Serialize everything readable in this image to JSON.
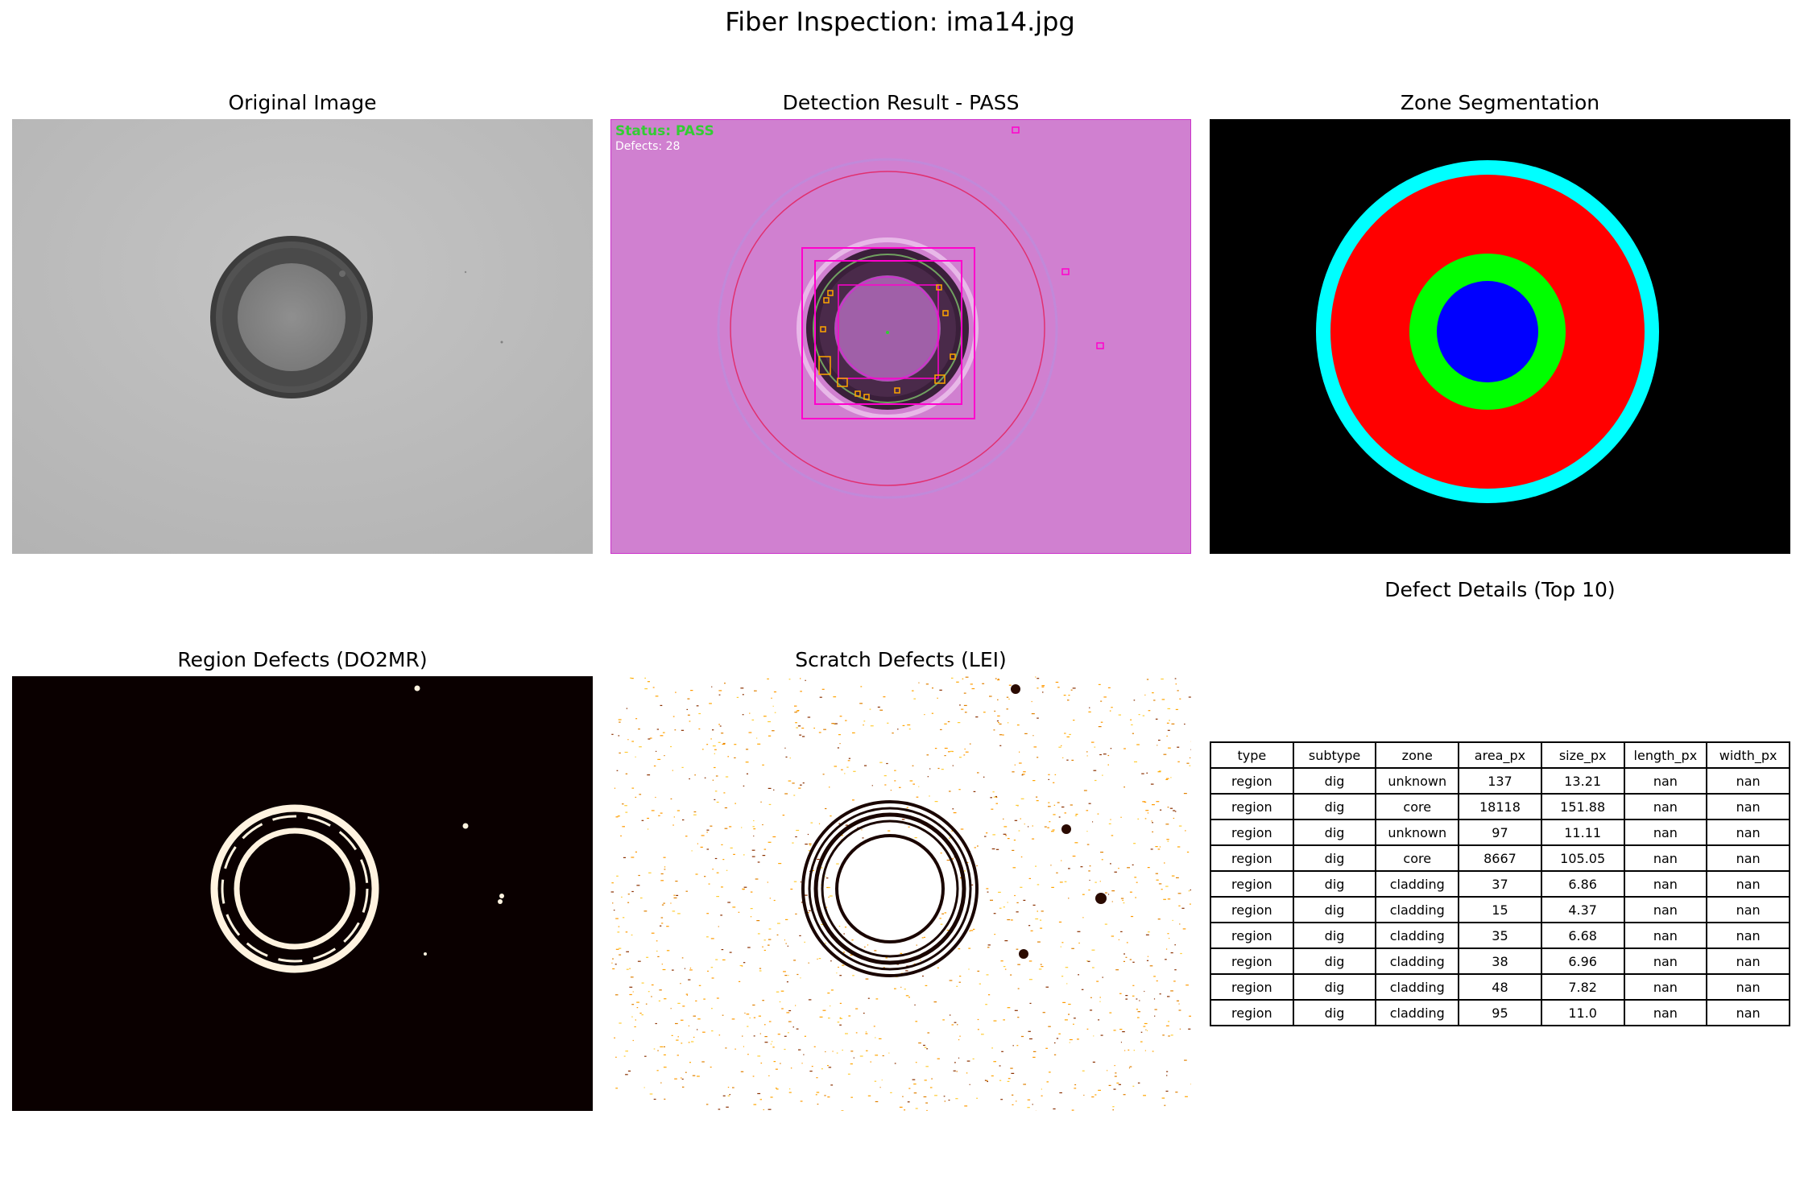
{
  "figure": {
    "title": "Fiber Inspection: ima14.jpg"
  },
  "panels": {
    "original": {
      "title": "Original Image"
    },
    "detection": {
      "title": "Detection Result - PASS",
      "status_text": "Status: PASS",
      "defects_text": "Defects: 28"
    },
    "zones": {
      "title": "Zone Segmentation"
    },
    "region": {
      "title": "Region Defects (DO2MR)"
    },
    "scratch": {
      "title": "Scratch Defects (LEI)"
    },
    "table": {
      "title": "Defect Details (Top 10)"
    }
  },
  "defect_table": {
    "columns": [
      "type",
      "subtype",
      "zone",
      "area_px",
      "size_px",
      "length_px",
      "width_px"
    ],
    "rows": [
      [
        "region",
        "dig",
        "unknown",
        "137",
        "13.21",
        "nan",
        "nan"
      ],
      [
        "region",
        "dig",
        "core",
        "18118",
        "151.88",
        "nan",
        "nan"
      ],
      [
        "region",
        "dig",
        "unknown",
        "97",
        "11.11",
        "nan",
        "nan"
      ],
      [
        "region",
        "dig",
        "core",
        "8667",
        "105.05",
        "nan",
        "nan"
      ],
      [
        "region",
        "dig",
        "cladding",
        "37",
        "6.86",
        "nan",
        "nan"
      ],
      [
        "region",
        "dig",
        "cladding",
        "15",
        "4.37",
        "nan",
        "nan"
      ],
      [
        "region",
        "dig",
        "cladding",
        "35",
        "6.68",
        "nan",
        "nan"
      ],
      [
        "region",
        "dig",
        "cladding",
        "38",
        "6.96",
        "nan",
        "nan"
      ],
      [
        "region",
        "dig",
        "cladding",
        "48",
        "7.82",
        "nan",
        "nan"
      ],
      [
        "region",
        "dig",
        "cladding",
        "95",
        "11.0",
        "nan",
        "nan"
      ]
    ]
  },
  "colors": {
    "zone_core": "#0000ff",
    "zone_cladding": "#00ff00",
    "zone_ferrule": "#ff0000",
    "zone_outer": "#00ffff",
    "status_pass": "#33cc33",
    "overlay": "#d080d0"
  }
}
